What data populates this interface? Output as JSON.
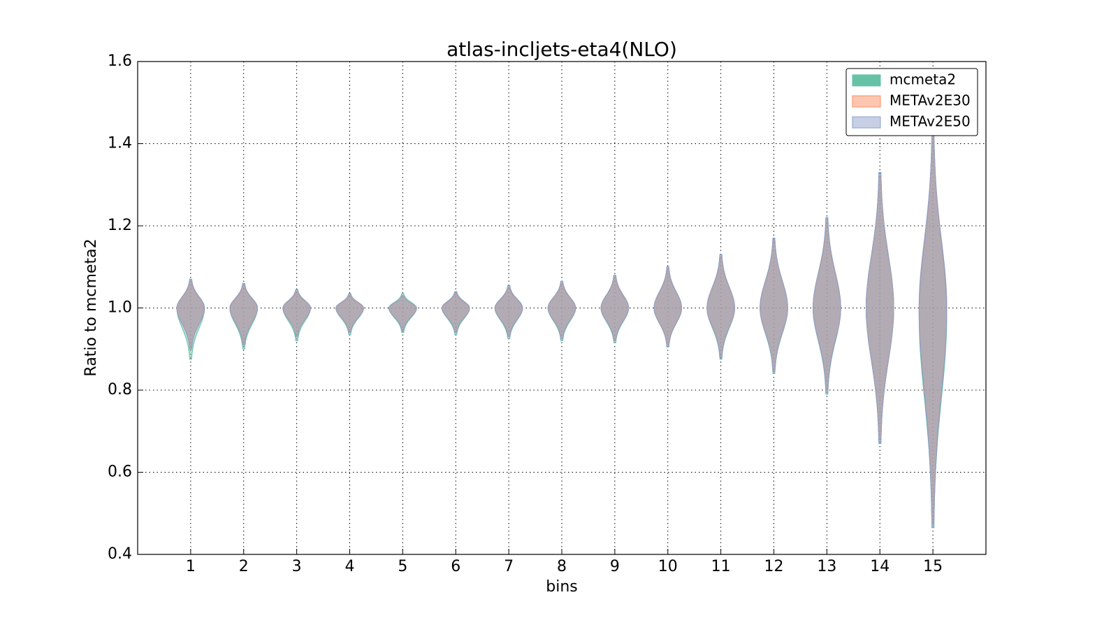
{
  "chart_data": {
    "type": "violin",
    "title": "atlas-incljets-eta4(NLO)",
    "x_label": "bins",
    "y_label": "Ratio to mcmeta2",
    "categories": [
      1,
      2,
      3,
      4,
      5,
      6,
      7,
      8,
      9,
      10,
      11,
      12,
      13,
      14,
      15
    ],
    "xlim": [
      0,
      16
    ],
    "xticks": [
      1,
      2,
      3,
      4,
      5,
      6,
      7,
      8,
      9,
      10,
      11,
      12,
      13,
      14,
      15
    ],
    "ylim": [
      0.4,
      1.6
    ],
    "yticks": [
      0.4,
      0.6,
      0.8,
      {
        "value": 1,
        "label": "1.0"
      },
      1.2,
      1.4,
      1.6
    ],
    "grid": true,
    "legend": "upper right",
    "series": [
      {
        "name": "mcmeta2",
        "color": "#66c2a5",
        "min": [
          0.875,
          0.9,
          0.92,
          0.935,
          0.94,
          0.935,
          0.925,
          0.92,
          0.915,
          0.905,
          0.875,
          0.84,
          0.79,
          0.67,
          0.465
        ],
        "max": [
          1.07,
          1.06,
          1.045,
          1.035,
          1.035,
          1.04,
          1.055,
          1.065,
          1.08,
          1.1,
          1.13,
          1.17,
          1.22,
          1.33,
          1.43
        ],
        "centers": [
          1.0,
          1.0,
          1.0,
          1.0,
          1.0,
          1.0,
          1.0,
          1.0,
          1.0,
          1.0,
          1.0,
          1.0,
          1.0,
          1.0,
          0.98
        ]
      },
      {
        "name": "METAv2E30",
        "color": "#fc8d62",
        "min": [
          0.9,
          0.91,
          0.93,
          0.94,
          0.945,
          0.94,
          0.93,
          0.925,
          0.92,
          0.91,
          0.88,
          0.845,
          0.8,
          0.68,
          0.48
        ],
        "max": [
          1.065,
          1.055,
          1.04,
          1.03,
          1.03,
          1.035,
          1.05,
          1.06,
          1.075,
          1.095,
          1.125,
          1.165,
          1.21,
          1.32,
          1.42
        ],
        "centers": [
          1.0,
          1.0,
          1.0,
          1.0,
          1.0,
          1.0,
          1.0,
          1.0,
          1.0,
          1.0,
          1.0,
          1.0,
          1.0,
          1.0,
          1.0
        ]
      },
      {
        "name": "METAv2E50",
        "color": "#8da0cb",
        "min": [
          0.9,
          0.91,
          0.93,
          0.94,
          0.945,
          0.94,
          0.93,
          0.925,
          0.92,
          0.905,
          0.88,
          0.845,
          0.795,
          0.67,
          0.465
        ],
        "max": [
          1.07,
          1.06,
          1.045,
          1.035,
          1.03,
          1.04,
          1.055,
          1.065,
          1.08,
          1.1,
          1.13,
          1.17,
          1.22,
          1.33,
          1.43
        ],
        "centers": [
          1.0,
          1.0,
          1.0,
          1.0,
          1.0,
          1.0,
          1.0,
          1.0,
          1.0,
          1.0,
          1.0,
          1.0,
          1.0,
          1.0,
          1.0
        ]
      }
    ]
  }
}
